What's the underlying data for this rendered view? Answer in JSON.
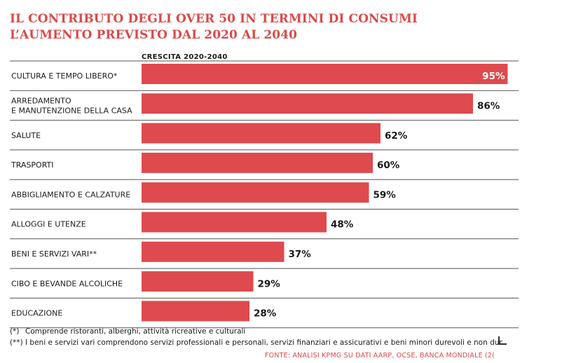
{
  "chart_data": {
    "type": "bar",
    "orientation": "horizontal",
    "title_lines": [
      "IL CONTRIBUTO DEGLI OVER 50 IN TERMINI DI CONSUMI",
      "L’AUMENTO PREVISTO DAL 2020 AL 2040"
    ],
    "subtitle": "CRESCITA 2020-2040",
    "categories": [
      [
        "CULTURA E TEMPO LIBERO*"
      ],
      [
        "ARREDAMENTO",
        "E MANUTENZIONE DELLA CASA"
      ],
      [
        "SALUTE"
      ],
      [
        "TRASPORTI"
      ],
      [
        "ABBIGLIAMENTO E CALZATURE"
      ],
      [
        "ALLOGGI E UTENZE"
      ],
      [
        "BENI E SERVIZI VARI**"
      ],
      [
        "CIBO E BEVANDE ALCOLICHE"
      ],
      [
        "EDUCAZIONE"
      ]
    ],
    "values": [
      95,
      86,
      62,
      60,
      59,
      48,
      37,
      29,
      28
    ],
    "value_labels": [
      "95%",
      "86%",
      "62%",
      "60%",
      "59%",
      "48%",
      "37%",
      "29%",
      "28%"
    ],
    "xlim": [
      0,
      100
    ],
    "bar_color": "#de4a4d",
    "grid": false
  },
  "notes": [
    {
      "mark": "(*)",
      "text": "Comprende ristoranti, alberghi, attività ricreative e culturali"
    },
    {
      "mark": "(**)",
      "text": "I beni e servizi vari comprendono servizi professionali e personali, servizi finanziari e assicurativi e beni minori durevoli e non dur"
    }
  ],
  "source": "FONTE: ANALISI KPMG SU DATI AARP, OCSE, BANCA MONDIALE (2("
}
